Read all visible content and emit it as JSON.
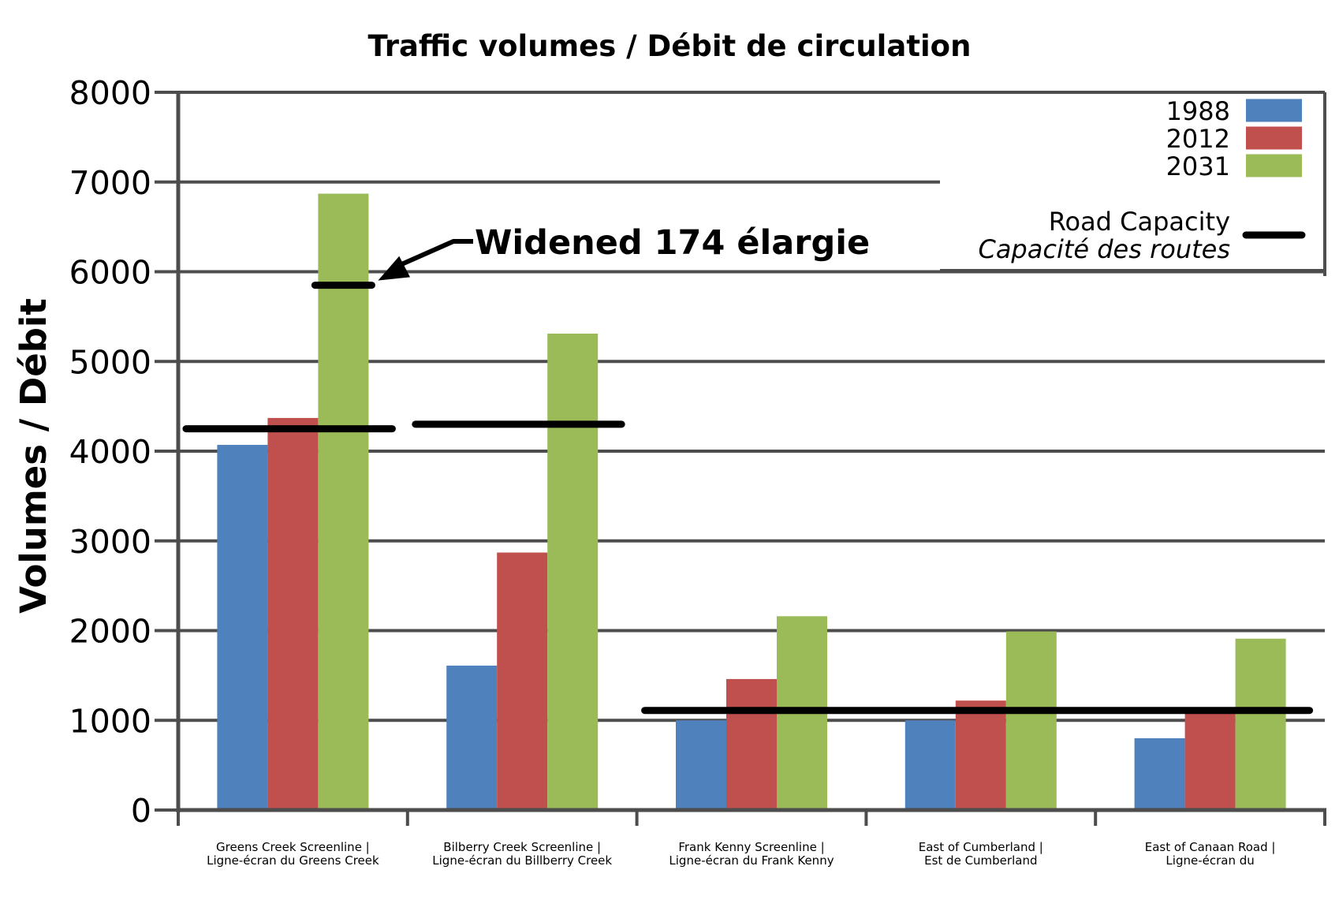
{
  "chart_data": {
    "type": "bar",
    "title": "Traffic volumes / Débit de circulation",
    "ylabel": "Volumes / Débit",
    "xlabel": "",
    "ylim": [
      0,
      8000
    ],
    "yticks": [
      "0",
      "1000",
      "2000",
      "3000",
      "4000",
      "5000",
      "6000",
      "7000",
      "8000"
    ],
    "grid": true,
    "legend_position": "top-right",
    "categories": [
      [
        "Greens Creek Screenline |",
        "Ligne-écran du Greens Creek"
      ],
      [
        "Bilberry Creek Screenline |",
        "Ligne-écran du Billberry Creek"
      ],
      [
        "Frank Kenny Screenline |",
        "Ligne-écran du Frank Kenny"
      ],
      [
        "East of Cumberland |",
        "Est de Cumberland"
      ],
      [
        "East of Canaan Road |",
        "Ligne-écran du"
      ]
    ],
    "series": [
      {
        "name": "1988",
        "color": "#4f81bd",
        "values": [
          4070,
          1610,
          1000,
          1000,
          800
        ]
      },
      {
        "name": "2012",
        "color": "#c0504d",
        "values": [
          4370,
          2870,
          1460,
          1220,
          1130
        ]
      },
      {
        "name": "2031",
        "color": "#9bbb59",
        "values": [
          6870,
          5310,
          2160,
          1990,
          1910
        ]
      }
    ],
    "road_capacity": {
      "legend_label": "Road Capacity",
      "legend_label_fr": "Capacité des routes",
      "color": "#000000",
      "segments": [
        {
          "from_category": 0,
          "to_category": 0,
          "value": 4250
        },
        {
          "from_category": 1,
          "to_category": 1,
          "value": 4300
        },
        {
          "from_category": 2,
          "to_category": 4,
          "value": 1110
        }
      ],
      "widened_value": 5850
    },
    "annotation": {
      "text": "Widened 174 élargie",
      "target_category": 0,
      "target_value": 5850
    }
  }
}
